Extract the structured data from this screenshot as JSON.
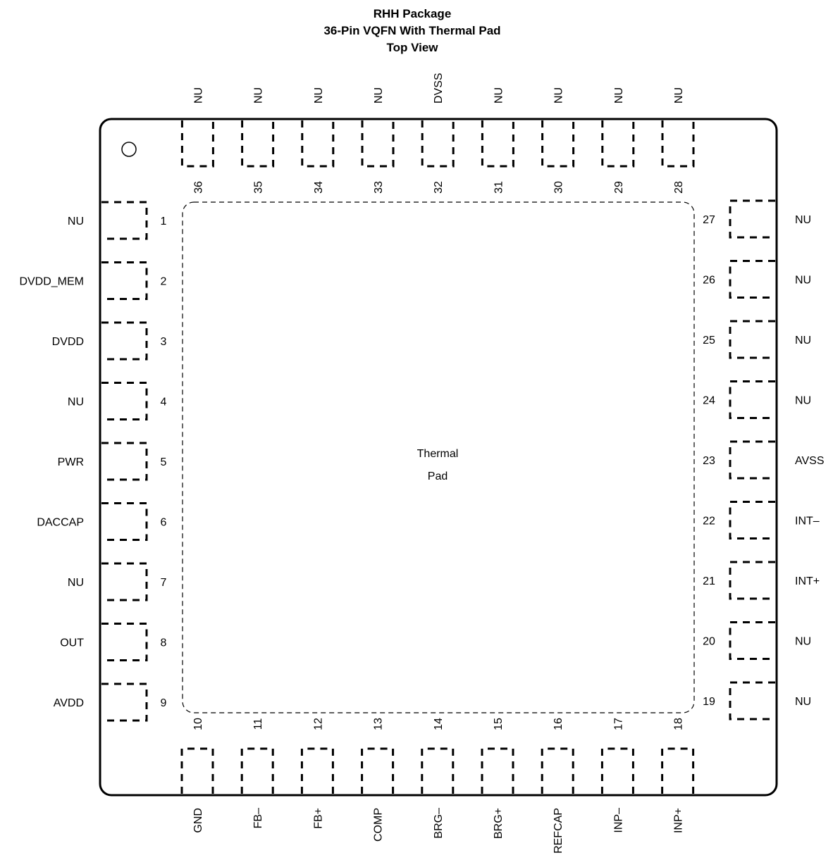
{
  "title": {
    "line1": "RHH Package",
    "line2": "36-Pin VQFN With Thermal Pad",
    "line3": "Top View"
  },
  "thermal_pad": {
    "line1": "Thermal",
    "line2": "Pad"
  },
  "pins": {
    "left": [
      {
        "num": "1",
        "name": "NU"
      },
      {
        "num": "2",
        "name": "DVDD_MEM"
      },
      {
        "num": "3",
        "name": "DVDD"
      },
      {
        "num": "4",
        "name": "NU"
      },
      {
        "num": "5",
        "name": "PWR"
      },
      {
        "num": "6",
        "name": "DACCAP"
      },
      {
        "num": "7",
        "name": "NU"
      },
      {
        "num": "8",
        "name": "OUT"
      },
      {
        "num": "9",
        "name": "AVDD"
      }
    ],
    "bottom": [
      {
        "num": "10",
        "name": "GND"
      },
      {
        "num": "11",
        "name": "FB–"
      },
      {
        "num": "12",
        "name": "FB+"
      },
      {
        "num": "13",
        "name": "COMP"
      },
      {
        "num": "14",
        "name": "BRG–"
      },
      {
        "num": "15",
        "name": "BRG+"
      },
      {
        "num": "16",
        "name": "REFCAP"
      },
      {
        "num": "17",
        "name": "INP–"
      },
      {
        "num": "18",
        "name": "INP+"
      }
    ],
    "right": [
      {
        "num": "19",
        "name": "NU"
      },
      {
        "num": "20",
        "name": "NU"
      },
      {
        "num": "21",
        "name": "INT+"
      },
      {
        "num": "22",
        "name": "INT–"
      },
      {
        "num": "23",
        "name": "AVSS"
      },
      {
        "num": "24",
        "name": "NU"
      },
      {
        "num": "25",
        "name": "NU"
      },
      {
        "num": "26",
        "name": "NU"
      },
      {
        "num": "27",
        "name": "NU"
      }
    ],
    "top": [
      {
        "num": "28",
        "name": "NU"
      },
      {
        "num": "29",
        "name": "NU"
      },
      {
        "num": "30",
        "name": "NU"
      },
      {
        "num": "31",
        "name": "NU"
      },
      {
        "num": "32",
        "name": "DVSS"
      },
      {
        "num": "33",
        "name": "NU"
      },
      {
        "num": "34",
        "name": "NU"
      },
      {
        "num": "35",
        "name": "NU"
      },
      {
        "num": "36",
        "name": "NU"
      }
    ]
  }
}
